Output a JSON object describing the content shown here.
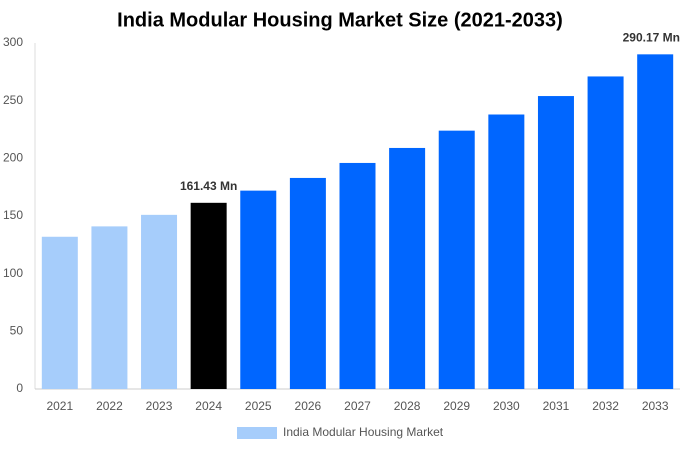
{
  "chart_data": {
    "type": "bar",
    "title": "India Modular Housing Market Size (2021-2033)",
    "categories": [
      "2021",
      "2022",
      "2023",
      "2024",
      "2025",
      "2026",
      "2027",
      "2028",
      "2029",
      "2030",
      "2031",
      "2032",
      "2033"
    ],
    "series": [
      {
        "name": "India Modular Housing Market",
        "color": "#a6cdfb",
        "values": [
          132,
          141,
          151,
          161.43,
          172,
          183,
          196,
          209,
          224,
          238,
          254,
          271,
          290.17
        ],
        "value_labels": [
          null,
          null,
          null,
          "161.43 Mn",
          null,
          null,
          null,
          null,
          null,
          null,
          null,
          null,
          "290.17 Mn"
        ],
        "bar_colors": [
          "#a6cdfb",
          "#a6cdfb",
          "#a6cdfb",
          "#000000",
          "#0066ff",
          "#0066ff",
          "#0066ff",
          "#0066ff",
          "#0066ff",
          "#0066ff",
          "#0066ff",
          "#0066ff",
          "#0066ff"
        ]
      }
    ],
    "ylim": [
      0,
      300
    ],
    "yticks": [
      0,
      50,
      100,
      150,
      200,
      250,
      300
    ],
    "grid": false,
    "legend": "bottom"
  }
}
